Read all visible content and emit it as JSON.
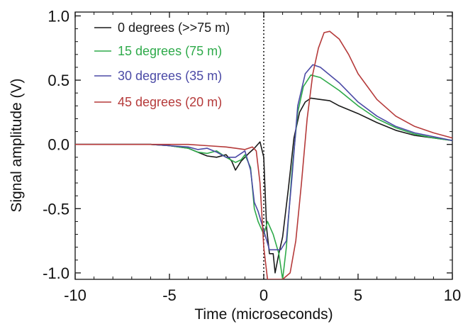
{
  "chart_data": {
    "type": "line",
    "title": "",
    "xlabel": "Time (microseconds)",
    "ylabel": "Signal amplitude (V)",
    "xlim": [
      -10,
      10
    ],
    "ylim": [
      -1.05,
      1.03
    ],
    "x_ticks": [
      -10,
      -5,
      0,
      5,
      10
    ],
    "x_tick_labels": [
      "-10",
      "-5",
      "0",
      "5",
      "10"
    ],
    "y_ticks": [
      1.0,
      0.5,
      0.0,
      -0.5,
      -1.0
    ],
    "y_tick_labels": [
      "1.0",
      "0.5",
      "0.0",
      "-0.5",
      "-1.0"
    ],
    "grid": false,
    "legend_position": "top-left",
    "annotations": [
      {
        "type": "vertical-dotted-line",
        "x": 0
      }
    ],
    "series": [
      {
        "name": "0 degrees (>>75 m)",
        "color": "#1a1a1a",
        "points": [
          [
            -10,
            0
          ],
          [
            -8,
            0
          ],
          [
            -6,
            0
          ],
          [
            -5,
            -0.01
          ],
          [
            -4.5,
            -0.02
          ],
          [
            -4,
            -0.03
          ],
          [
            -3.5,
            -0.06
          ],
          [
            -3,
            -0.09
          ],
          [
            -2.5,
            -0.1
          ],
          [
            -2,
            -0.08
          ],
          [
            -1.7,
            -0.13
          ],
          [
            -1.5,
            -0.2
          ],
          [
            -1.2,
            -0.13
          ],
          [
            -0.8,
            -0.07
          ],
          [
            -0.5,
            -0.03
          ],
          [
            -0.2,
            0.02
          ],
          [
            0,
            -0.1
          ],
          [
            0.15,
            -0.65
          ],
          [
            0.3,
            -0.85
          ],
          [
            0.5,
            -0.85
          ],
          [
            0.6,
            -1.0
          ],
          [
            0.8,
            -0.85
          ],
          [
            1.0,
            -0.72
          ],
          [
            1.3,
            -0.35
          ],
          [
            1.6,
            0.05
          ],
          [
            1.9,
            0.25
          ],
          [
            2.2,
            0.33
          ],
          [
            2.5,
            0.36
          ],
          [
            3,
            0.35
          ],
          [
            3.5,
            0.34
          ],
          [
            4,
            0.3
          ],
          [
            5,
            0.24
          ],
          [
            6,
            0.17
          ],
          [
            7,
            0.11
          ],
          [
            8,
            0.07
          ],
          [
            9,
            0.05
          ],
          [
            10,
            0.03
          ]
        ]
      },
      {
        "name": "15 degrees (75 m)",
        "color": "#2eaa4a",
        "points": [
          [
            -10,
            0
          ],
          [
            -8,
            0
          ],
          [
            -6,
            0
          ],
          [
            -5,
            -0.01
          ],
          [
            -4.5,
            -0.02
          ],
          [
            -4,
            -0.03
          ],
          [
            -3.5,
            -0.06
          ],
          [
            -3,
            -0.07
          ],
          [
            -2.5,
            -0.05
          ],
          [
            -2,
            -0.1
          ],
          [
            -1.5,
            -0.14
          ],
          [
            -1.2,
            -0.12
          ],
          [
            -1,
            -0.08
          ],
          [
            -0.7,
            -0.18
          ],
          [
            -0.5,
            -0.5
          ],
          [
            -0.3,
            -0.6
          ],
          [
            0,
            -0.7
          ],
          [
            0.2,
            -0.6
          ],
          [
            0.5,
            -0.7
          ],
          [
            0.8,
            -0.85
          ],
          [
            1.0,
            -1.05
          ],
          [
            1.2,
            -0.8
          ],
          [
            1.5,
            -0.2
          ],
          [
            1.8,
            0.25
          ],
          [
            2.1,
            0.45
          ],
          [
            2.5,
            0.54
          ],
          [
            3,
            0.52
          ],
          [
            4,
            0.42
          ],
          [
            5,
            0.3
          ],
          [
            6,
            0.2
          ],
          [
            7,
            0.13
          ],
          [
            8,
            0.08
          ],
          [
            9,
            0.05
          ],
          [
            10,
            0.03
          ]
        ]
      },
      {
        "name": "30 degrees (35 m)",
        "color": "#4b4aa6",
        "points": [
          [
            -10,
            0
          ],
          [
            -8,
            0
          ],
          [
            -6,
            0
          ],
          [
            -5,
            -0.01
          ],
          [
            -4,
            -0.02
          ],
          [
            -3.5,
            -0.04
          ],
          [
            -3,
            -0.03
          ],
          [
            -2.5,
            -0.06
          ],
          [
            -2,
            -0.1
          ],
          [
            -1.5,
            -0.1
          ],
          [
            -1,
            -0.05
          ],
          [
            -0.7,
            -0.2
          ],
          [
            -0.5,
            -0.45
          ],
          [
            -0.3,
            -0.52
          ],
          [
            0,
            -0.67
          ],
          [
            0.3,
            -0.82
          ],
          [
            0.6,
            -0.82
          ],
          [
            0.9,
            -0.82
          ],
          [
            1.2,
            -0.75
          ],
          [
            1.5,
            -0.25
          ],
          [
            1.8,
            0.3
          ],
          [
            2.2,
            0.55
          ],
          [
            2.6,
            0.62
          ],
          [
            3,
            0.6
          ],
          [
            4,
            0.48
          ],
          [
            5,
            0.33
          ],
          [
            6,
            0.22
          ],
          [
            7,
            0.14
          ],
          [
            8,
            0.09
          ],
          [
            9,
            0.06
          ],
          [
            10,
            0.03
          ]
        ]
      },
      {
        "name": "45 degrees (20 m)",
        "color": "#b53a3a",
        "points": [
          [
            -10,
            0
          ],
          [
            -8,
            0
          ],
          [
            -6,
            0
          ],
          [
            -4,
            0
          ],
          [
            -3,
            -0.01
          ],
          [
            -2,
            -0.02
          ],
          [
            -1.5,
            -0.03
          ],
          [
            -1.0,
            -0.04
          ],
          [
            -0.6,
            -0.02
          ],
          [
            -0.4,
            -0.05
          ],
          [
            -0.2,
            -0.3
          ],
          [
            0,
            -0.8
          ],
          [
            0.2,
            -1.05
          ],
          [
            0.5,
            -1.05
          ],
          [
            1.0,
            -1.05
          ],
          [
            1.4,
            -1.0
          ],
          [
            1.7,
            -0.75
          ],
          [
            2.0,
            -0.3
          ],
          [
            2.3,
            0.2
          ],
          [
            2.6,
            0.55
          ],
          [
            2.9,
            0.75
          ],
          [
            3.2,
            0.87
          ],
          [
            3.5,
            0.88
          ],
          [
            4,
            0.82
          ],
          [
            4.5,
            0.7
          ],
          [
            5,
            0.55
          ],
          [
            6,
            0.35
          ],
          [
            7,
            0.22
          ],
          [
            8,
            0.14
          ],
          [
            9,
            0.09
          ],
          [
            10,
            0.05
          ]
        ]
      }
    ]
  }
}
